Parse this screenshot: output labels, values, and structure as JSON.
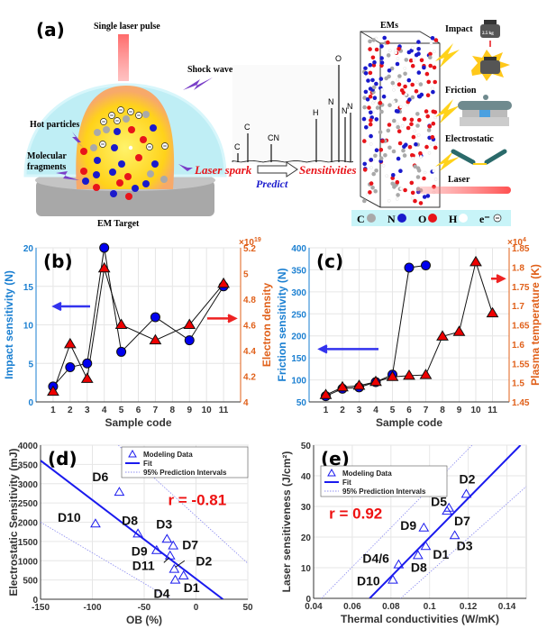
{
  "figure": {
    "panel_a": {
      "label": "(a)",
      "single_laser_pulse": "Single laser pulse",
      "shock_wave": "Shock wave",
      "hot_particles": "Hot particles",
      "molecular_fragments_1": "Molecular",
      "molecular_fragments_2": "fragments",
      "em_target": "EM Target",
      "laser_spark": "Laser spark",
      "predict": "Predict",
      "sensitivities": "Sensitivities",
      "ems": "EMs",
      "impact": "Impact",
      "weight": "2.5 kg",
      "friction": "Friction",
      "electrostatic": "Electrostatic",
      "laser": "Laser",
      "spectrum_peaks": [
        "C",
        "C",
        "CN",
        "H",
        "N",
        "O",
        "N",
        "N"
      ],
      "legend": [
        {
          "label": "C",
          "color": "#a9a9a9"
        },
        {
          "label": "N",
          "color": "#1a1acc"
        },
        {
          "label": "O",
          "color": "#e8141a"
        },
        {
          "label": "H",
          "color": "#ffffff"
        },
        {
          "label": "e⁻",
          "symbol": "⊖"
        }
      ],
      "colors": {
        "red_text": "#e8141a",
        "blue_text": "#1a1acc",
        "dome": "#bfeef5",
        "plasma": "#ffe030"
      }
    }
  },
  "chart_data": [
    {
      "id": "b",
      "panel_label": "(b)",
      "type": "line",
      "xlabel": "Sample code",
      "xlim": [
        0,
        12
      ],
      "xticks": [
        1,
        2,
        3,
        4,
        5,
        6,
        7,
        8,
        9,
        10,
        11
      ],
      "grid": true,
      "series": [
        {
          "axis": "left",
          "marker": "circle",
          "color": "#0000ee",
          "x": [
            1,
            2,
            3,
            4,
            5,
            7,
            9,
            11
          ],
          "y": [
            2,
            4.5,
            5,
            20,
            6.5,
            11,
            8,
            15
          ]
        },
        {
          "axis": "right",
          "marker": "triangle",
          "color": "#ee0000",
          "x": [
            1,
            2,
            3,
            4,
            5,
            7,
            9,
            11
          ],
          "y": [
            4.08,
            4.45,
            4.18,
            5.04,
            4.6,
            4.48,
            4.6,
            4.92
          ]
        }
      ],
      "ylabel": "Impact sensitivity (N)",
      "ylim": [
        0,
        20
      ],
      "yticks": [
        0,
        5,
        10,
        15,
        20
      ],
      "ycolor": "#1a7fd1",
      "y2label": "Electron density",
      "y2exponent": "×10",
      "y2exponent_power": "19",
      "y2lim": [
        4,
        5.2
      ],
      "y2ticks": [
        4,
        4.2,
        4.4,
        4.6,
        4.8,
        5,
        5.2
      ],
      "y2color": "#e0601a"
    },
    {
      "id": "c",
      "panel_label": "(c)",
      "type": "line",
      "xlabel": "Sample code",
      "xlim": [
        0,
        12
      ],
      "xticks": [
        1,
        2,
        3,
        4,
        5,
        6,
        7,
        8,
        9,
        10,
        11
      ],
      "grid": true,
      "series": [
        {
          "axis": "left",
          "marker": "circle",
          "color": "#0000ee",
          "x": [
            1,
            2,
            3,
            4,
            5,
            6,
            7
          ],
          "y": [
            63,
            80,
            83,
            95,
            112,
            355,
            360
          ]
        },
        {
          "axis": "right",
          "marker": "triangle",
          "color": "#ee0000",
          "x": [
            1,
            2,
            3,
            4,
            5,
            6,
            7,
            8,
            9,
            10,
            11
          ],
          "y": [
            1.468,
            1.488,
            1.492,
            1.502,
            1.515,
            1.518,
            1.52,
            1.62,
            1.632,
            1.813,
            1.68
          ]
        }
      ],
      "ylabel": "Friction sensitivity (N)",
      "ylim": [
        50,
        400
      ],
      "yticks": [
        50,
        100,
        150,
        200,
        250,
        300,
        350,
        400
      ],
      "ycolor": "#1a7fd1",
      "y2label": "Plasma temperature (K)",
      "y2exponent": "×10",
      "y2exponent_power": "4",
      "y2lim": [
        1.45,
        1.85
      ],
      "y2ticks": [
        1.45,
        1.5,
        1.55,
        1.6,
        1.65,
        1.7,
        1.75,
        1.8,
        1.85
      ],
      "y2color": "#e0601a"
    },
    {
      "id": "d",
      "panel_label": "(d)",
      "type": "scatter",
      "xlabel": "OB (%)",
      "ylabel": "Electrostatic Sensitivity (mJ)",
      "xlim": [
        -150,
        50
      ],
      "xticks": [
        -150,
        -100,
        -50,
        0,
        50
      ],
      "ylim": [
        0,
        4000
      ],
      "yticks": [
        0,
        500,
        1000,
        1500,
        2000,
        2500,
        3000,
        3500,
        4000
      ],
      "grid": true,
      "legend": [
        "Modeling Data",
        "Fit",
        "95% Prediction Intervals"
      ],
      "legend_position": "top-right",
      "annotation": "r = -0.81",
      "color": "#1a1aee",
      "points": [
        {
          "label": "D6",
          "x": -74,
          "y": 2780
        },
        {
          "label": "D10",
          "x": -97,
          "y": 1960
        },
        {
          "label": "D8",
          "x": -56,
          "y": 1700
        },
        {
          "label": "D3",
          "x": -28,
          "y": 1560
        },
        {
          "label": "D7",
          "x": -22,
          "y": 1390
        },
        {
          "label": "D9",
          "x": -38,
          "y": 1270
        },
        {
          "label": "D11",
          "x": -25,
          "y": 1130
        },
        {
          "label": "D2",
          "x": -21,
          "y": 780
        },
        {
          "label": "D4",
          "x": -20,
          "y": 500
        },
        {
          "label": "D1",
          "x": -12,
          "y": 610
        }
      ],
      "fit": [
        [
          -150,
          3600
        ],
        [
          26,
          0
        ]
      ],
      "pi_upper": [
        [
          -75,
          4000
        ],
        [
          50,
          930
        ]
      ],
      "pi_lower": [
        [
          -150,
          2000
        ],
        [
          -24,
          0
        ]
      ]
    },
    {
      "id": "e",
      "panel_label": "(e)",
      "type": "scatter",
      "xlabel": "Thermal conductivities (W/mK)",
      "ylabel": "Laser sensitiveness (J/cm²)",
      "xlim": [
        0.04,
        0.15
      ],
      "xticks": [
        0.04,
        0.06,
        0.08,
        0.1,
        0.12,
        0.14
      ],
      "ylim": [
        0,
        50
      ],
      "yticks": [
        0,
        10,
        20,
        30,
        40,
        50
      ],
      "grid": true,
      "legend": [
        "Modeling Data",
        "Fit",
        "95% Prediction Intervals"
      ],
      "legend_position": "top-left",
      "annotation": "r = 0.92",
      "color": "#1a1aee",
      "points": [
        {
          "label": "D2",
          "x": 0.119,
          "y": 34
        },
        {
          "label": "D5",
          "x": 0.11,
          "y": 29.5
        },
        {
          "label": "D7",
          "x": 0.109,
          "y": 28.5
        },
        {
          "label": "D9",
          "x": 0.097,
          "y": 23
        },
        {
          "label": "D3",
          "x": 0.113,
          "y": 20.5
        },
        {
          "label": "D1",
          "x": 0.098,
          "y": 17
        },
        {
          "label": "D8",
          "x": 0.094,
          "y": 14
        },
        {
          "label": "D4/6",
          "x": 0.084,
          "y": 11
        },
        {
          "label": "D10",
          "x": 0.081,
          "y": 6
        }
      ],
      "fit": [
        [
          0.069,
          0
        ],
        [
          0.147,
          50
        ]
      ],
      "pi_upper": [
        [
          0.044,
          0
        ],
        [
          0.122,
          50
        ]
      ],
      "pi_lower": [
        [
          0.085,
          0
        ],
        [
          0.15,
          36.5
        ]
      ]
    }
  ]
}
